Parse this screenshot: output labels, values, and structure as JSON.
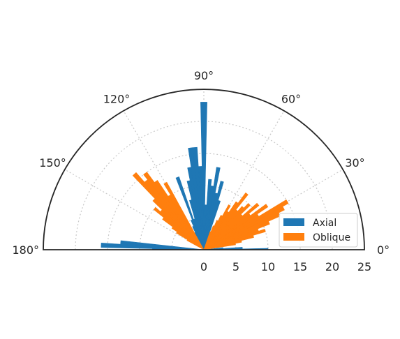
{
  "chart_data": {
    "type": "polar-bar",
    "title": "",
    "theta_range_deg": [
      0,
      180
    ],
    "r_range": [
      0,
      25
    ],
    "grid": true,
    "legend_position": "lower-right",
    "angle_ticks": [
      "0°",
      "30°",
      "60°",
      "90°",
      "120°",
      "150°",
      "180°"
    ],
    "angle_tick_values": [
      0,
      30,
      60,
      90,
      120,
      150,
      180
    ],
    "radial_ticks": [
      "0",
      "5",
      "10",
      "15",
      "20",
      "25"
    ],
    "radial_tick_values": [
      0,
      5,
      10,
      15,
      20,
      25
    ],
    "bin_width_deg": 2.5,
    "series": [
      {
        "name": "Axial",
        "color": "#1f77b4",
        "angles_deg": [
          0,
          2.5,
          5,
          72.5,
          75,
          77.5,
          80,
          82.5,
          85,
          87.5,
          90,
          92.5,
          95,
          97.5,
          100,
          102.5,
          105,
          107.5,
          110,
          112.5,
          115,
          117.5,
          175,
          177.5,
          180
        ],
        "values": [
          10,
          6,
          3,
          8,
          11,
          9,
          13,
          10,
          11,
          7,
          23,
          13,
          16,
          16,
          13,
          11,
          8,
          5,
          12,
          5,
          4,
          3,
          13,
          16,
          8
        ]
      },
      {
        "name": "Oblique",
        "color": "#ff7f0e",
        "angles_deg": [
          10,
          12.5,
          15,
          17.5,
          20,
          22.5,
          25,
          27.5,
          30,
          32.5,
          35,
          37.5,
          40,
          42.5,
          45,
          47.5,
          50,
          52.5,
          55,
          57.5,
          60,
          62.5,
          65,
          67.5,
          70,
          120,
          122.5,
          125,
          127.5,
          130,
          132.5,
          135,
          137.5,
          140,
          142.5,
          145,
          147.5,
          150
        ],
        "values": [
          5,
          6,
          8,
          10,
          9,
          11,
          13,
          14,
          15,
          10,
          12,
          9,
          11,
          8,
          10,
          9,
          8,
          11,
          9,
          7,
          8,
          6,
          5,
          4,
          3,
          12,
          10,
          13,
          15,
          14,
          16,
          11,
          9,
          10,
          8,
          6,
          5,
          3
        ]
      }
    ]
  }
}
